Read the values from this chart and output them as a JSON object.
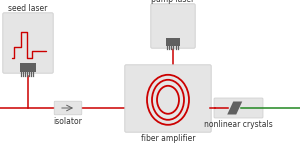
{
  "bg_color": "#ffffff",
  "box_color": "#e5e5e5",
  "box_edge": "#cccccc",
  "red": "#cc0000",
  "green": "#228822",
  "dark_gray": "#606060",
  "text_color": "#333333",
  "seed_laser_label": "seed laser",
  "pump_laser_label": "pump laser",
  "isolator_label": "isolator",
  "fiber_amplifier_label": "fiber amplifier",
  "nonlinear_label": "nonlinear crystals",
  "figsize": [
    3.0,
    1.58
  ],
  "dpi": 100
}
